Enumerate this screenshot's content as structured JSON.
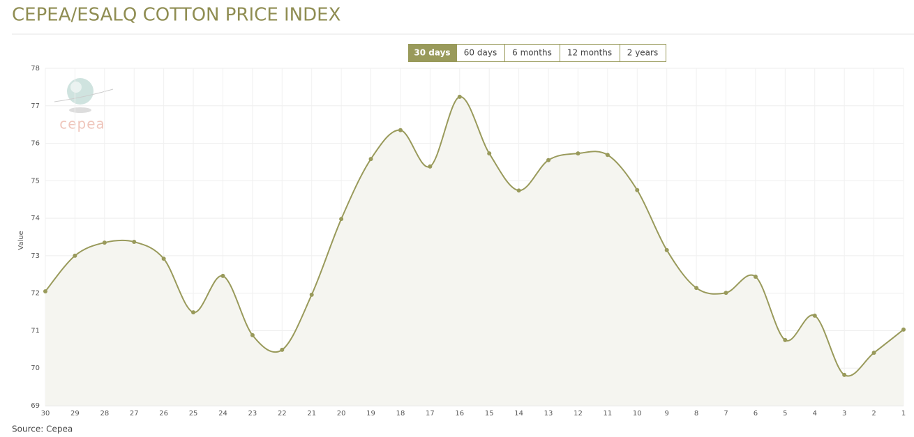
{
  "controls": {
    "buttons": [
      "30 days",
      "60 days",
      "6 months",
      "12 months",
      "2 years"
    ],
    "active": 0
  },
  "chart_data": {
    "type": "line",
    "title": "CEPEA/ESALQ COTTON PRICE INDEX",
    "logo": "cepea",
    "ylabel": "Value",
    "source": "Source: Cepea",
    "categories": [
      "30",
      "29",
      "28",
      "27",
      "26",
      "25",
      "24",
      "23",
      "22",
      "21",
      "20",
      "19",
      "18",
      "17",
      "16",
      "15",
      "14",
      "13",
      "12",
      "11",
      "10",
      "9",
      "8",
      "7",
      "6",
      "5",
      "4",
      "3",
      "2",
      "1"
    ],
    "series": [
      {
        "name": "Value",
        "color": "#999a5b",
        "values": [
          72.05,
          73.0,
          73.35,
          73.37,
          72.92,
          71.49,
          72.46,
          70.88,
          70.49,
          71.96,
          73.98,
          75.58,
          76.35,
          75.38,
          77.24,
          75.73,
          74.74,
          75.55,
          75.73,
          75.69,
          74.75,
          73.15,
          72.14,
          72.01,
          72.44,
          70.75,
          71.4,
          69.82,
          70.41,
          71.03
        ]
      }
    ],
    "ylim": [
      69,
      78
    ],
    "yticks": [
      69,
      70,
      71,
      72,
      73,
      74,
      75,
      76,
      77,
      78
    ],
    "grid": true
  }
}
